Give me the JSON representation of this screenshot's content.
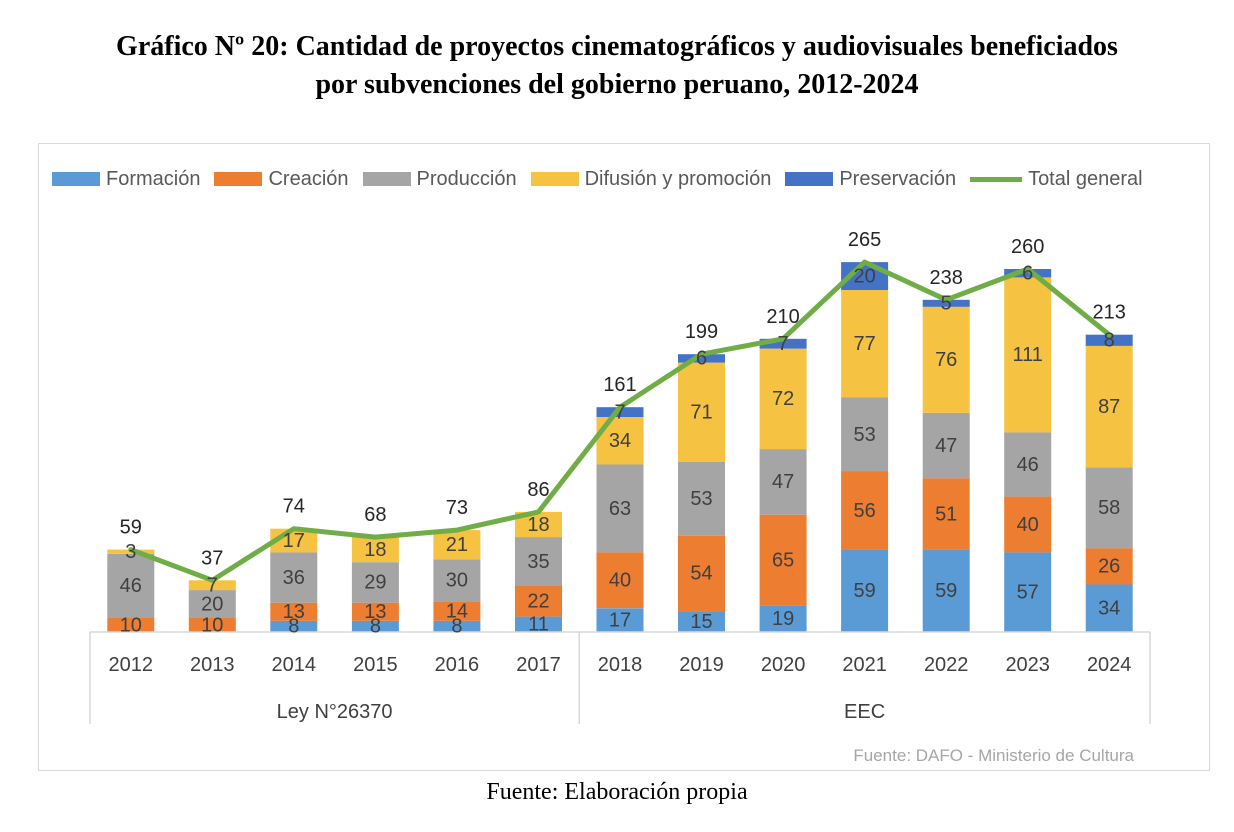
{
  "title": {
    "line1": "Gráfico Nº 20: Cantidad de proyectos cinematográficos y audiovisuales beneficiados",
    "line2": "por subvenciones del gobierno peruano, 2012-2024"
  },
  "caption": "Fuente: Elaboración propia",
  "source_note": "Fuente: DAFO - Ministerio de Cultura",
  "colors": {
    "Formación": "#5b9bd5",
    "Creación": "#ed7d31",
    "Producción": "#a5a5a5",
    "Difusión y promoción": "#f5c242",
    "Preservación": "#4472c4",
    "Total general": "#70ad47"
  },
  "chart_data": {
    "type": "bar",
    "stacked": true,
    "categories": [
      "2012",
      "2013",
      "2014",
      "2015",
      "2016",
      "2017",
      "2018",
      "2019",
      "2020",
      "2021",
      "2022",
      "2023",
      "2024"
    ],
    "category_groups": [
      {
        "label": "Ley N°26370",
        "categories": [
          "2012",
          "2013",
          "2014",
          "2015",
          "2016",
          "2017"
        ]
      },
      {
        "label": "EEC",
        "categories": [
          "2018",
          "2019",
          "2020",
          "2021",
          "2022",
          "2023",
          "2024"
        ]
      }
    ],
    "series": [
      {
        "name": "Formación",
        "values": [
          0,
          0,
          8,
          8,
          8,
          11,
          17,
          15,
          19,
          59,
          59,
          57,
          34
        ]
      },
      {
        "name": "Creación",
        "values": [
          10,
          10,
          13,
          13,
          14,
          22,
          40,
          54,
          65,
          56,
          51,
          40,
          26
        ]
      },
      {
        "name": "Producción",
        "values": [
          46,
          20,
          36,
          29,
          30,
          35,
          63,
          53,
          47,
          53,
          47,
          46,
          58
        ]
      },
      {
        "name": "Difusión y promoción",
        "values": [
          3,
          7,
          17,
          18,
          21,
          18,
          34,
          71,
          72,
          77,
          76,
          111,
          87
        ]
      },
      {
        "name": "Preservación",
        "values": [
          0,
          0,
          0,
          0,
          0,
          0,
          7,
          6,
          7,
          20,
          5,
          6,
          8
        ]
      }
    ],
    "total": {
      "name": "Total general",
      "type": "line",
      "values": [
        59,
        37,
        74,
        68,
        73,
        86,
        161,
        199,
        210,
        265,
        238,
        260,
        213
      ]
    },
    "ylim": [
      0,
      280
    ],
    "legend_position": "top",
    "grid": false
  }
}
